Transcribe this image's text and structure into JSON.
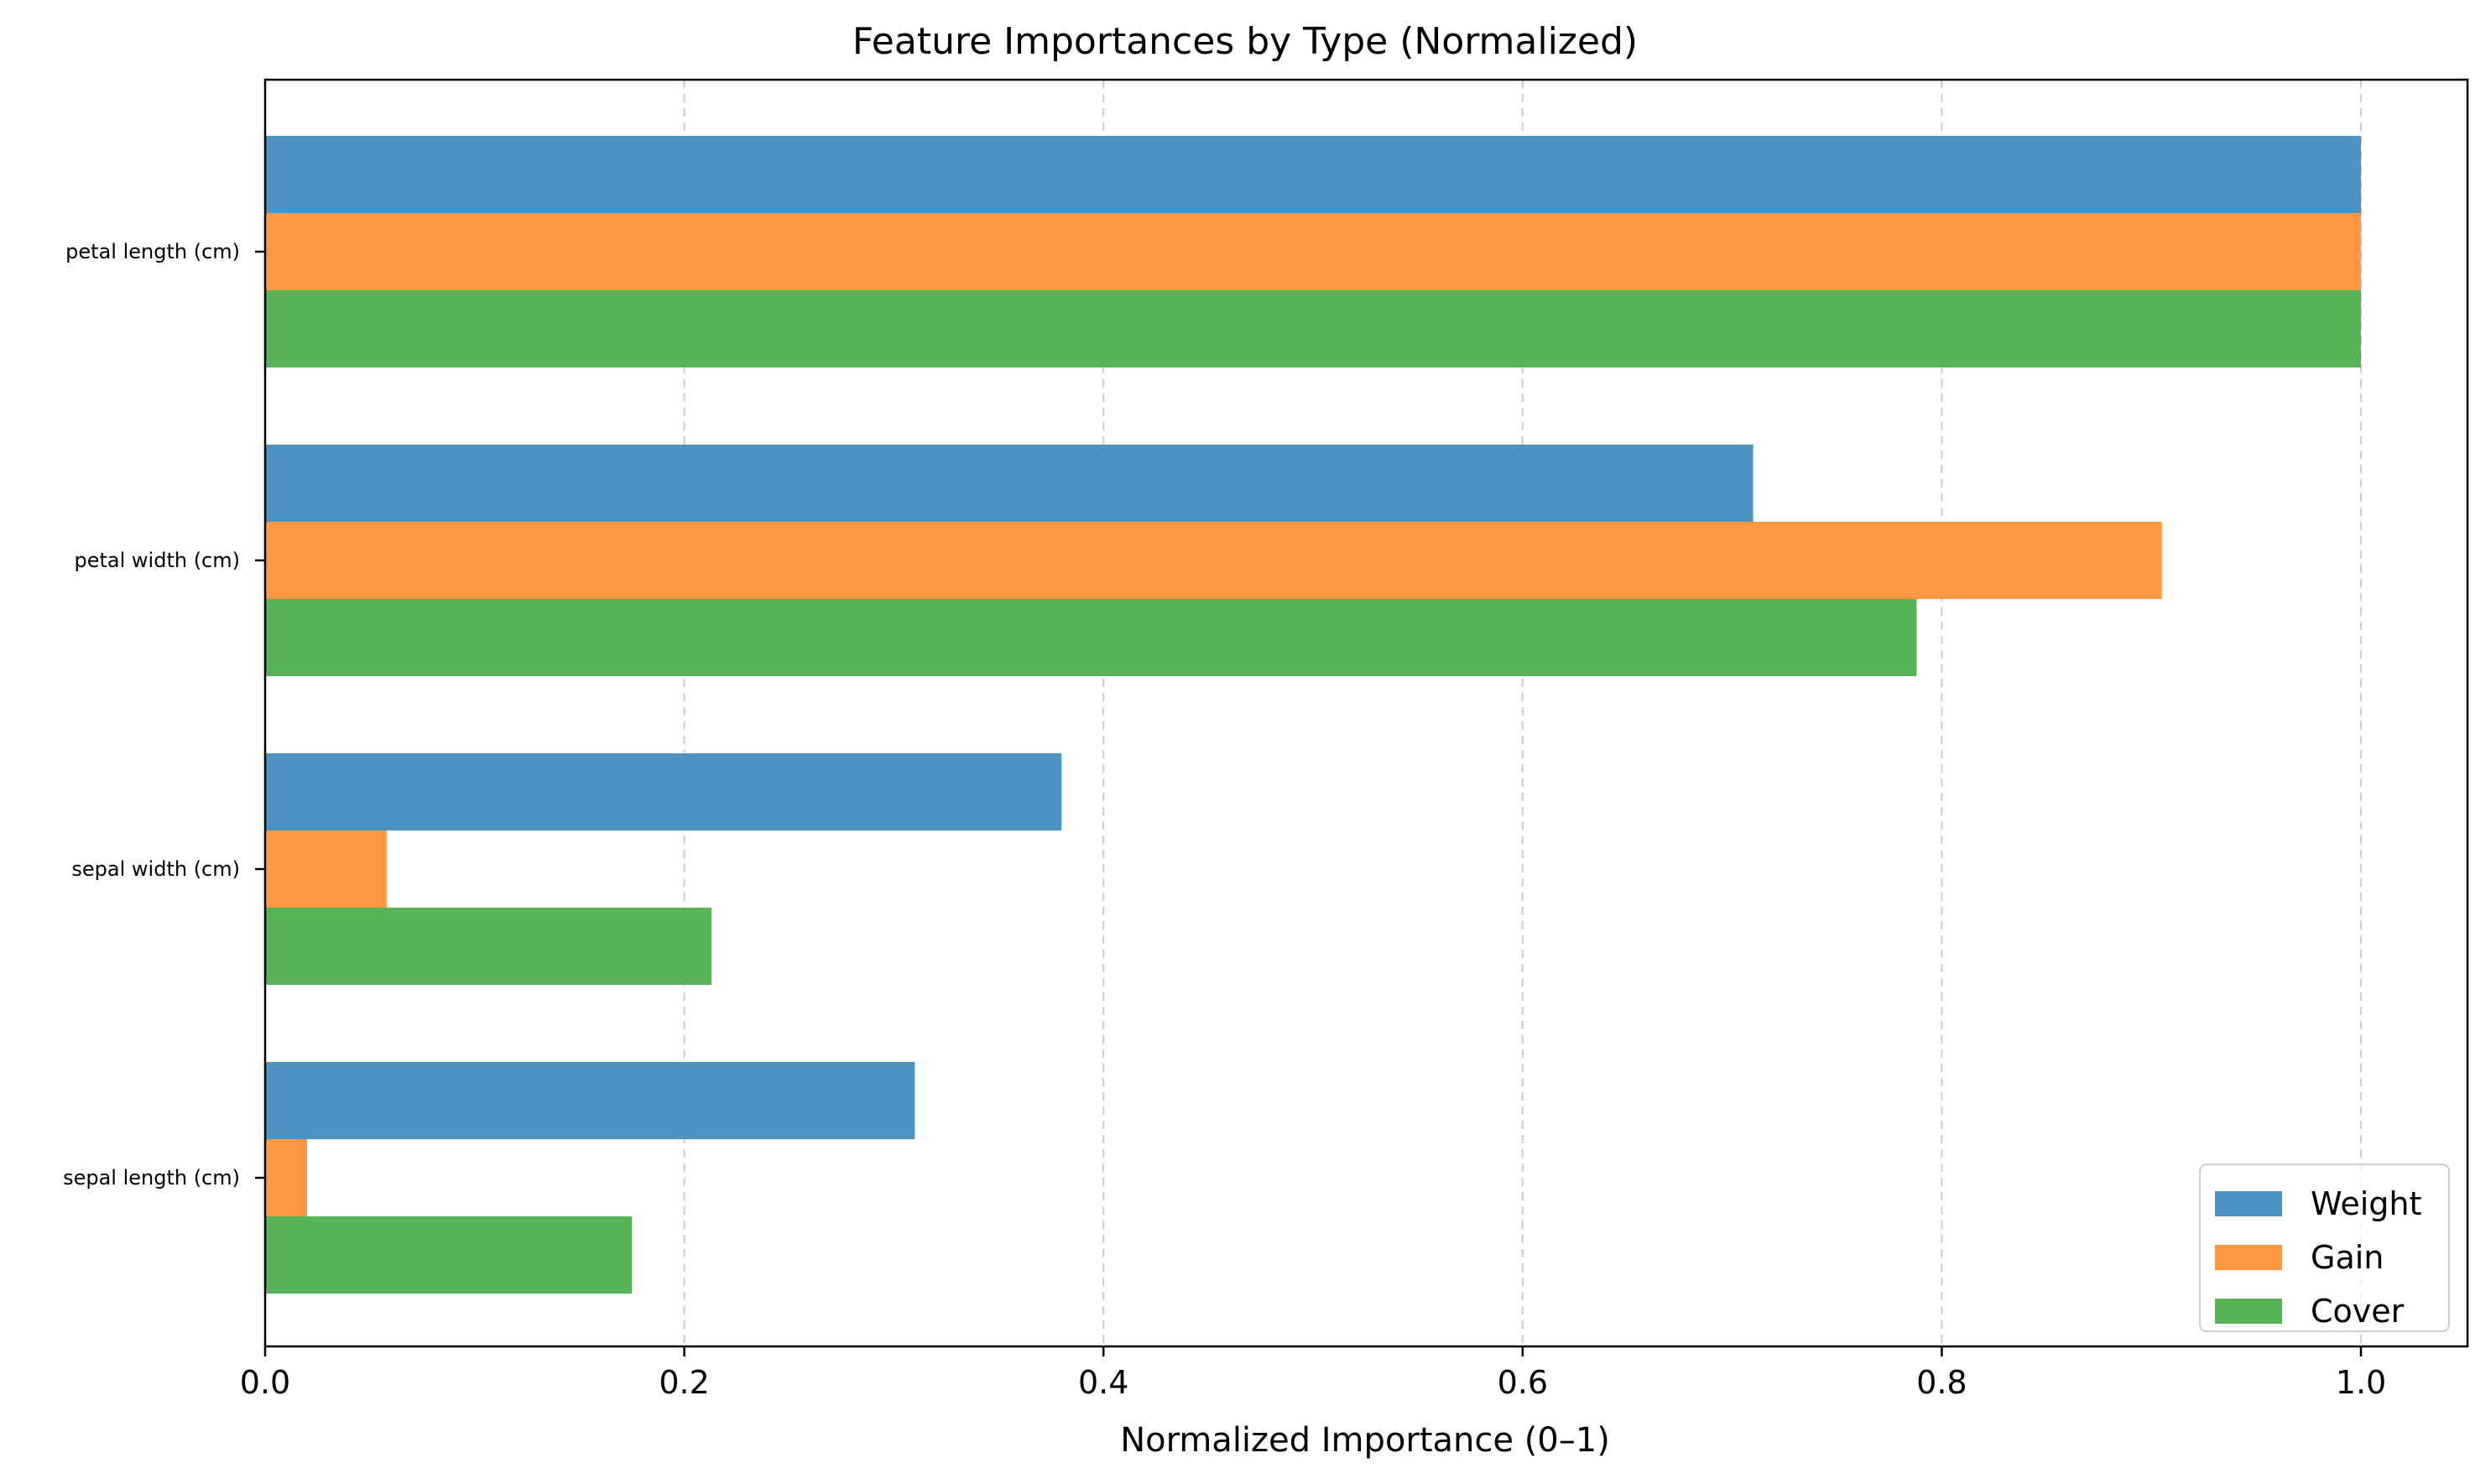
{
  "chart_data": {
    "type": "bar",
    "orientation": "horizontal",
    "title": "Feature Importances by Type (Normalized)",
    "xlabel": "Normalized Importance (0–1)",
    "ylabel": "",
    "xlim": [
      0,
      1.05
    ],
    "xticks": [
      "0.0",
      "0.2",
      "0.4",
      "0.6",
      "0.8",
      "1.0"
    ],
    "xtick_values": [
      0,
      0.2,
      0.4,
      0.6,
      0.8,
      1.0
    ],
    "grid": "x-axis dashed",
    "legend_position": "bottom-right",
    "categories": [
      "petal length (cm)",
      "petal width (cm)",
      "sepal width (cm)",
      "sepal length (cm)"
    ],
    "series": [
      {
        "name": "Weight",
        "color": "#4c93c3",
        "values": [
          1.0,
          0.71,
          0.38,
          0.31
        ]
      },
      {
        "name": "Gain",
        "color": "#ff9841",
        "values": [
          1.0,
          0.905,
          0.058,
          0.02
        ]
      },
      {
        "name": "Cover",
        "color": "#56b356",
        "values": [
          1.0,
          0.788,
          0.213,
          0.175
        ]
      }
    ]
  }
}
